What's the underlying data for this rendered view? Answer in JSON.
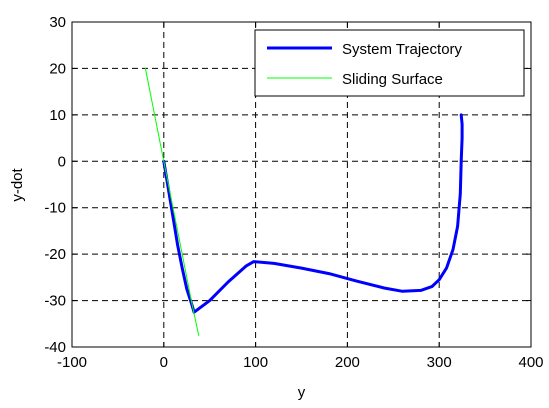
{
  "chart_data": {
    "type": "line",
    "xlabel": "y",
    "ylabel": "y-dot",
    "xlim": [
      -100,
      400
    ],
    "ylim": [
      -40,
      30
    ],
    "xticks": [
      -100,
      0,
      100,
      200,
      300,
      400
    ],
    "yticks": [
      -40,
      -30,
      -20,
      -10,
      0,
      10,
      20,
      30
    ],
    "xtick_labels": [
      "-100",
      "0",
      "100",
      "200",
      "300",
      "400"
    ],
    "ytick_labels": [
      "-40",
      "-30",
      "-20",
      "-10",
      "0",
      "10",
      "20",
      "30"
    ],
    "grid": true,
    "grid_style": "dashed",
    "legend_position": "top-right",
    "series": [
      {
        "name": "System Trajectory",
        "color": "#0000ff",
        "x": [
          0,
          5,
          10,
          15,
          20,
          25,
          30,
          33,
          50,
          70,
          90,
          98,
          120,
          150,
          180,
          210,
          240,
          260,
          280,
          292,
          300,
          308,
          315,
          320,
          323,
          324,
          325,
          325,
          324
        ],
        "y": [
          0,
          -6,
          -12,
          -18,
          -23,
          -27.5,
          -30.5,
          -32.5,
          -30,
          -26,
          -22.5,
          -21.6,
          -22,
          -23,
          -24.2,
          -25.8,
          -27.3,
          -28,
          -27.8,
          -27,
          -25.5,
          -23,
          -19,
          -14,
          -7,
          0,
          5,
          8,
          10
        ]
      },
      {
        "name": "Sliding Surface",
        "color": "#00ff00",
        "x": [
          -20,
          -10,
          0,
          10,
          20,
          30,
          38
        ],
        "y": [
          20,
          10,
          0,
          -10,
          -20,
          -30,
          -37.5
        ]
      }
    ]
  }
}
